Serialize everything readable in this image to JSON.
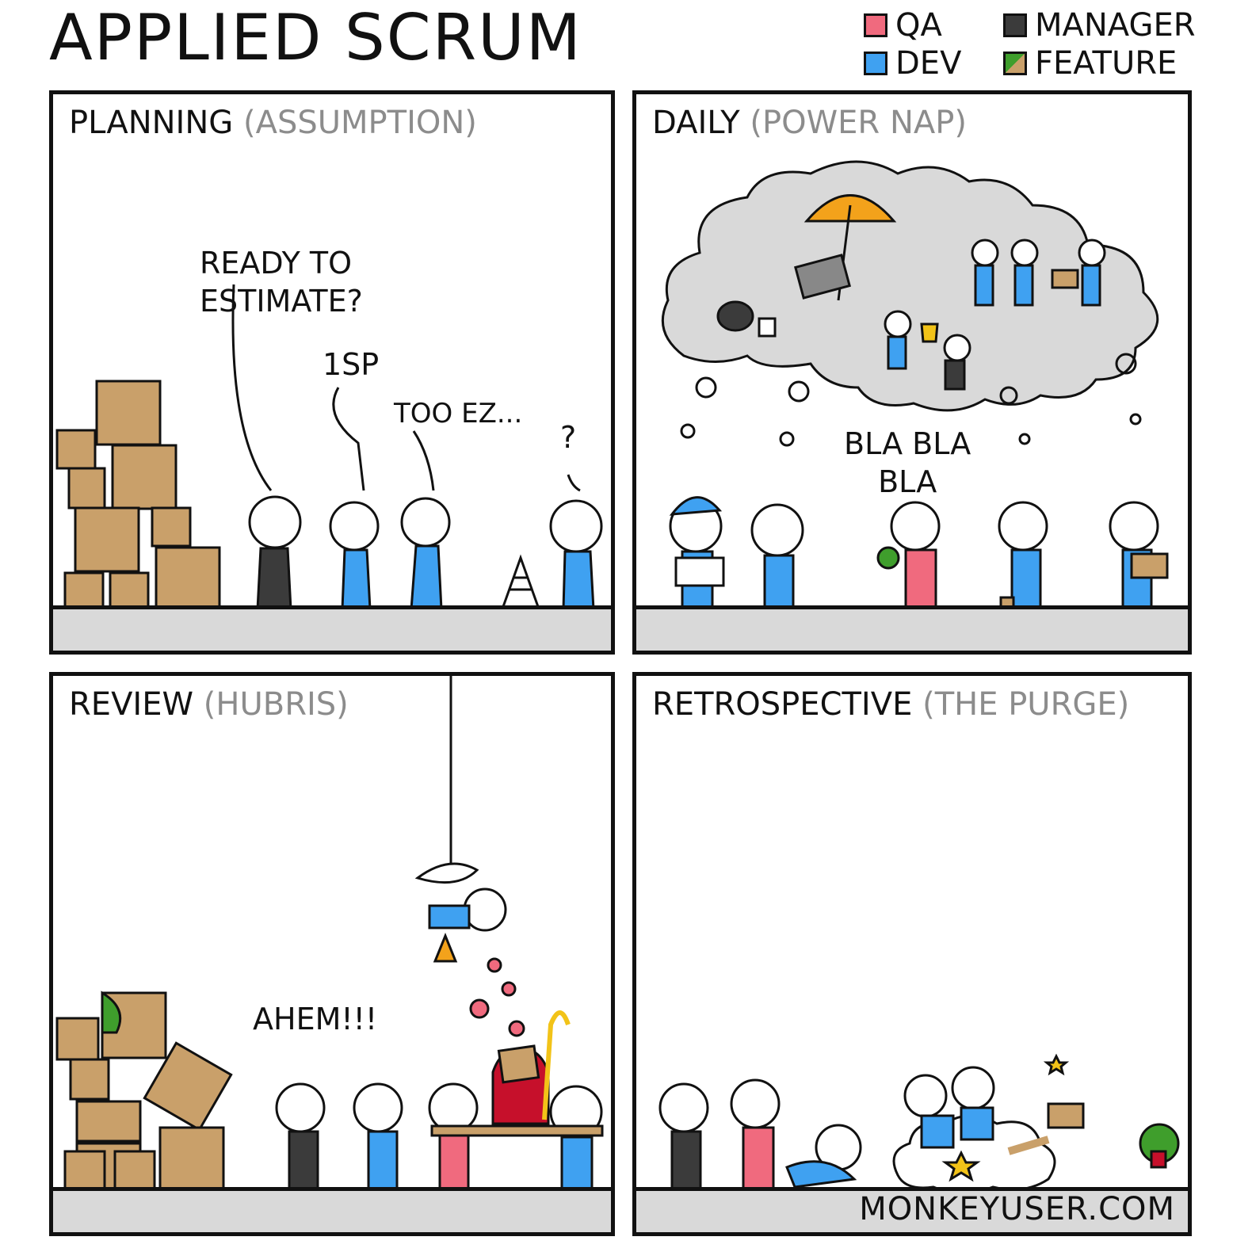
{
  "title": "APPLIED SCRUM",
  "legend": [
    {
      "label": "QA",
      "color": "#f06a7e"
    },
    {
      "label": "DEV",
      "color": "#3fa1f1"
    },
    {
      "label": "MANAGER",
      "color": "#3b3b3b"
    },
    {
      "label": "FEATURE",
      "color": "#c9a06a"
    }
  ],
  "panels": {
    "planning": {
      "title": "PLANNING",
      "subtitle": "ASSUMPTION",
      "bubbles": [
        "READY TO\nESTIMATE?",
        "1SP",
        "TOO EZ...",
        "?"
      ]
    },
    "daily": {
      "title": "DAILY",
      "subtitle": "POWER NAP",
      "bubbles": [
        "BLA BLA\nBLA"
      ]
    },
    "review": {
      "title": "REVIEW",
      "subtitle": "HUBRIS",
      "bubbles": [
        "AHEM!!!"
      ]
    },
    "retrospective": {
      "title": "RETROSPECTIVE",
      "subtitle": "THE PURGE",
      "credit": "MONKEYUSER.COM"
    }
  },
  "colors": {
    "qa": "#f06a7e",
    "dev": "#3fa1f1",
    "manager": "#3b3b3b",
    "feature_box": "#c9a06a",
    "feature_mold": "#3f9e2c",
    "cloud": "#d9d9d9",
    "floor": "#d9d9d9",
    "subtitle_gray": "#8c8c8c"
  }
}
